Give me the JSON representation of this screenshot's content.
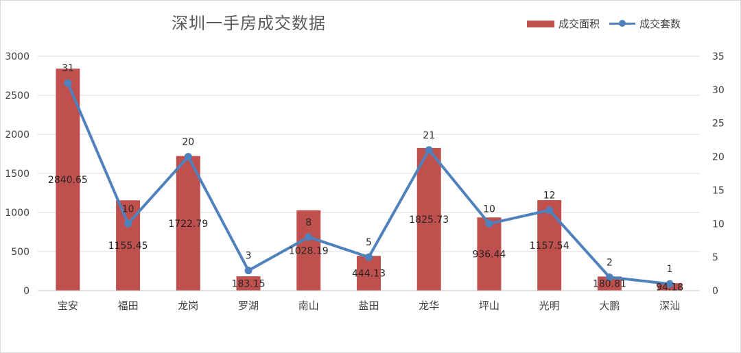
{
  "chart_data": {
    "type": "bar",
    "title": "深圳一手房成交数据",
    "categories": [
      "宝安",
      "福田",
      "龙岗",
      "罗湖",
      "南山",
      "盐田",
      "龙华",
      "坪山",
      "光明",
      "大鹏",
      "深汕"
    ],
    "series": [
      {
        "name": "成交面积",
        "kind": "bar",
        "axis": "left",
        "color": "#c0504d",
        "values": [
          2840.65,
          1155.45,
          1722.79,
          183.15,
          1028.19,
          444.13,
          1825.73,
          936.44,
          1157.54,
          180.81,
          94.18
        ],
        "labels": [
          "2840.65",
          "1155.45",
          "1722.79",
          "183.15",
          "1028.19",
          "444.13",
          "1825.73",
          "936.44",
          "1157.54",
          "180.81",
          "94.18"
        ]
      },
      {
        "name": "成交套数",
        "kind": "line",
        "axis": "right",
        "color": "#4f81bd",
        "values": [
          31,
          10,
          20,
          3,
          8,
          5,
          21,
          10,
          12,
          2,
          1
        ],
        "labels": [
          "31",
          "10",
          "20",
          "3",
          "8",
          "5",
          "21",
          "10",
          "12",
          "2",
          "1"
        ]
      }
    ],
    "ylim_left": [
      0,
      3000
    ],
    "yticks_left": [
      "0",
      "500",
      "1000",
      "1500",
      "2000",
      "2500",
      "3000"
    ],
    "ylim_right": [
      0,
      35
    ],
    "yticks_right": [
      "0",
      "5",
      "10",
      "15",
      "20",
      "25",
      "30",
      "35"
    ],
    "grid": true,
    "legend_position": "top-right"
  }
}
